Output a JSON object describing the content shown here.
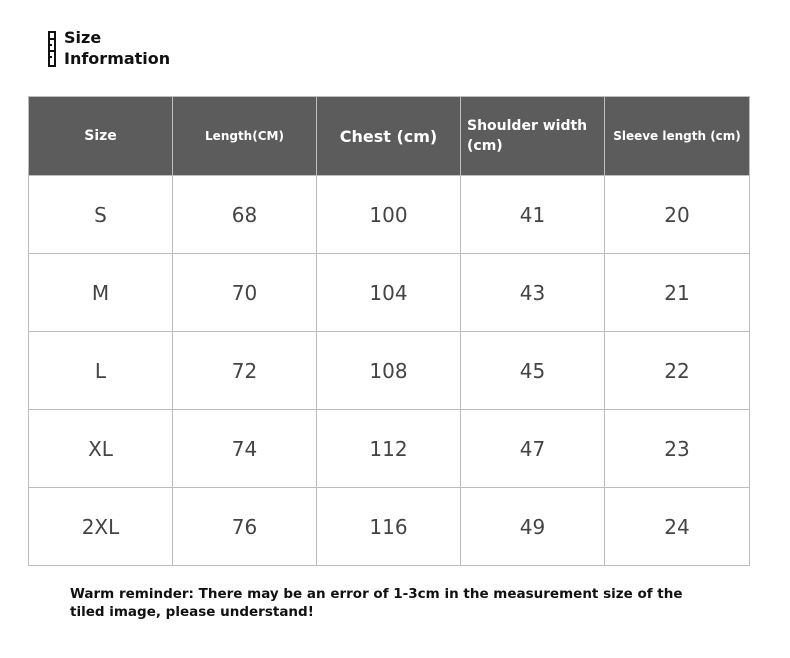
{
  "title": {
    "line1": "Size",
    "line2": "Information",
    "icon": "ruler-icon"
  },
  "table": {
    "headers": [
      "Size",
      "Length(CM)",
      "Chest (cm)",
      "Shoulder width (cm)",
      "Sleeve length (cm)"
    ],
    "rows": [
      [
        "S",
        "68",
        "100",
        "41",
        "20"
      ],
      [
        "M",
        "70",
        "104",
        "43",
        "21"
      ],
      [
        "L",
        "72",
        "108",
        "45",
        "22"
      ],
      [
        "XL",
        "74",
        "112",
        "47",
        "23"
      ],
      [
        "2XL",
        "76",
        "116",
        "49",
        "24"
      ]
    ]
  },
  "reminder": "Warm reminder: There may be an error of 1-3cm in the measurement size of the tiled image, please understand!",
  "colors": {
    "header_bg": "#5c5c5c",
    "header_text": "#ffffff",
    "border": "#bdbdbd"
  }
}
